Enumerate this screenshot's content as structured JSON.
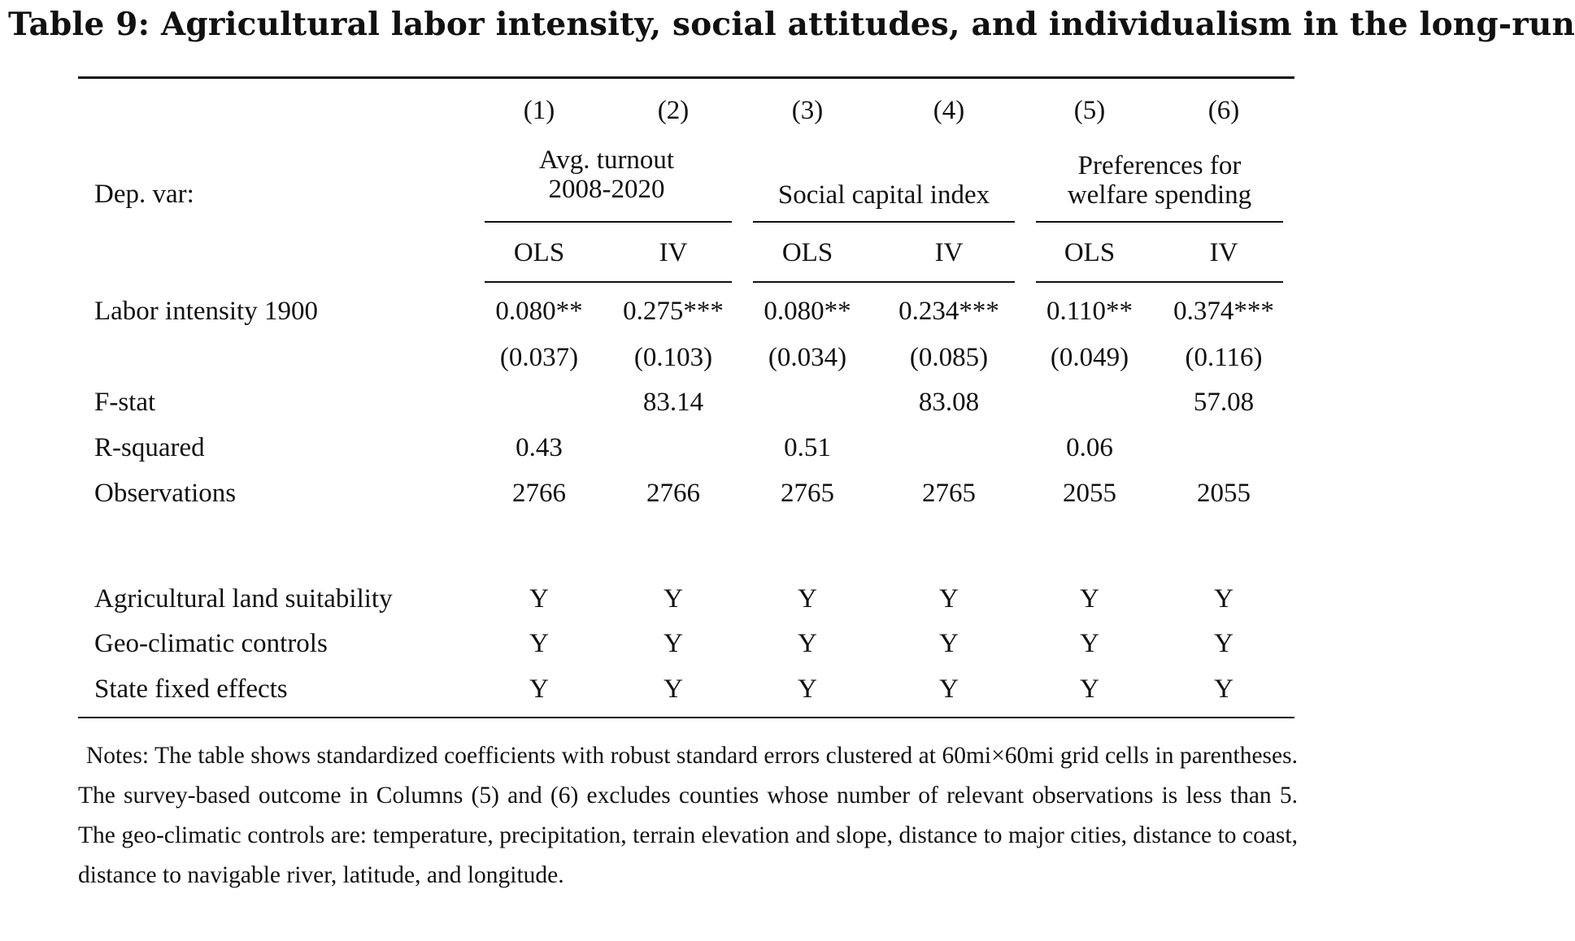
{
  "title": "Table 9: Agricultural labor intensity, social attitudes, and individualism in the long-run",
  "columns": [
    "(1)",
    "(2)",
    "(3)",
    "(4)",
    "(5)",
    "(6)"
  ],
  "dep_var_label": "Dep. var:",
  "dep_vars": [
    {
      "line1": "Avg. turnout",
      "line2": "2008-2020"
    },
    {
      "line1": "",
      "line2": "Social capital index"
    },
    {
      "line1": "Preferences for",
      "line2": "welfare spending"
    }
  ],
  "methods": [
    "OLS",
    "IV",
    "OLS",
    "IV",
    "OLS",
    "IV"
  ],
  "rows": {
    "labor_intensity": {
      "label": "Labor intensity 1900",
      "values": [
        "0.080**",
        "0.275***",
        "0.080**",
        "0.234***",
        "0.110**",
        "0.374***"
      ]
    },
    "std_errors": {
      "values": [
        "(0.037)",
        "(0.103)",
        "(0.034)",
        "(0.085)",
        "(0.049)",
        "(0.116)"
      ]
    },
    "fstat": {
      "label": "F-stat",
      "values": [
        "",
        "83.14",
        "",
        "83.08",
        "",
        "57.08"
      ]
    },
    "rsquared": {
      "label": "R-squared",
      "values": [
        "0.43",
        "",
        "0.51",
        "",
        "0.06",
        ""
      ]
    },
    "observations": {
      "label": "Observations",
      "values": [
        "2766",
        "2766",
        "2765",
        "2765",
        "2055",
        "2055"
      ]
    },
    "land_suit": {
      "label": "Agricultural land suitability",
      "values": [
        "Y",
        "Y",
        "Y",
        "Y",
        "Y",
        "Y"
      ]
    },
    "geo_controls": {
      "label": "Geo-climatic controls",
      "values": [
        "Y",
        "Y",
        "Y",
        "Y",
        "Y",
        "Y"
      ]
    },
    "state_fe": {
      "label": "State fixed effects",
      "values": [
        "Y",
        "Y",
        "Y",
        "Y",
        "Y",
        "Y"
      ]
    }
  },
  "notes": "Notes: The table shows standardized coefficients with robust standard errors clustered at 60mi×60mi grid cells in parentheses. The survey-based outcome in Columns (5) and (6) excludes counties whose number of relevant observations is less than 5. The geo-climatic controls are: temperature, precipitation, terrain elevation and slope, distance to major cities, distance to coast, distance to navigable river, latitude, and longitude."
}
